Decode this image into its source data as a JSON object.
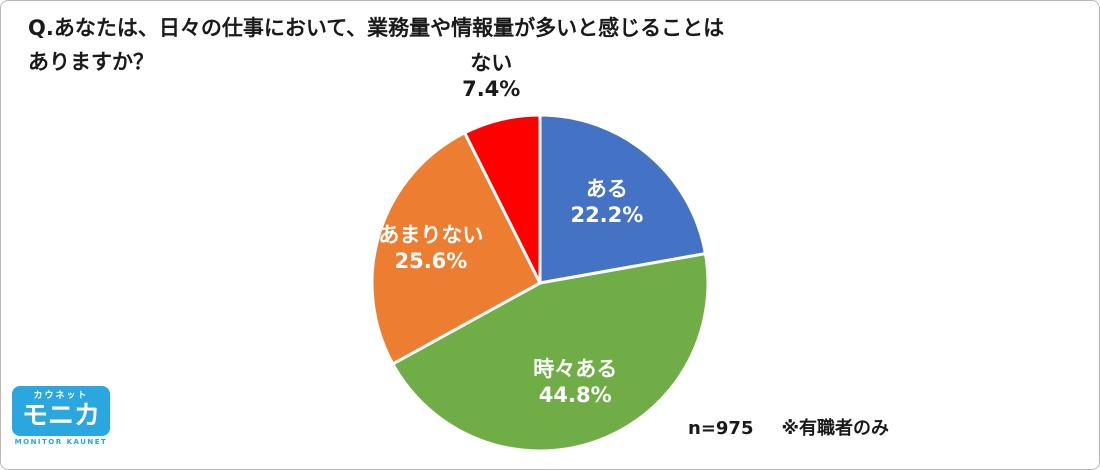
{
  "header": {
    "title_line1": "Q.あなたは、日々の仕事において、業務量や情報量が多いと感じることは",
    "title_line2": "ありますか？"
  },
  "footer": {
    "sample": "n=975",
    "note": "※有職者のみ"
  },
  "logo": {
    "top": "カウネット",
    "main": "モニカ",
    "sub": "MONITOR KAUNET",
    "brand_color": "#2AA7DE"
  },
  "chart_data": {
    "type": "pie",
    "title": "Q.あなたは、日々の仕事において、業務量や情報量が多いと感じることはありますか？",
    "labels": [
      "ある",
      "時々ある",
      "あまりない",
      "ない"
    ],
    "values": [
      22.2,
      44.8,
      25.6,
      7.4
    ],
    "unit": "%",
    "colors": [
      "#4472C4",
      "#70AD47",
      "#ED7D31",
      "#FF0000"
    ],
    "start_angle_deg": 0,
    "direction": "clockwise",
    "slice_border_color": "#FFFFFF",
    "inside_label_color": "#FFFFFF",
    "outside_label_color": "#1A1A1A",
    "label_outside": [
      false,
      false,
      false,
      true
    ],
    "label_radius": [
      0.62,
      0.63,
      0.68,
      1.26
    ],
    "legend": "none",
    "annotation": "n=975　※有職者のみ"
  }
}
